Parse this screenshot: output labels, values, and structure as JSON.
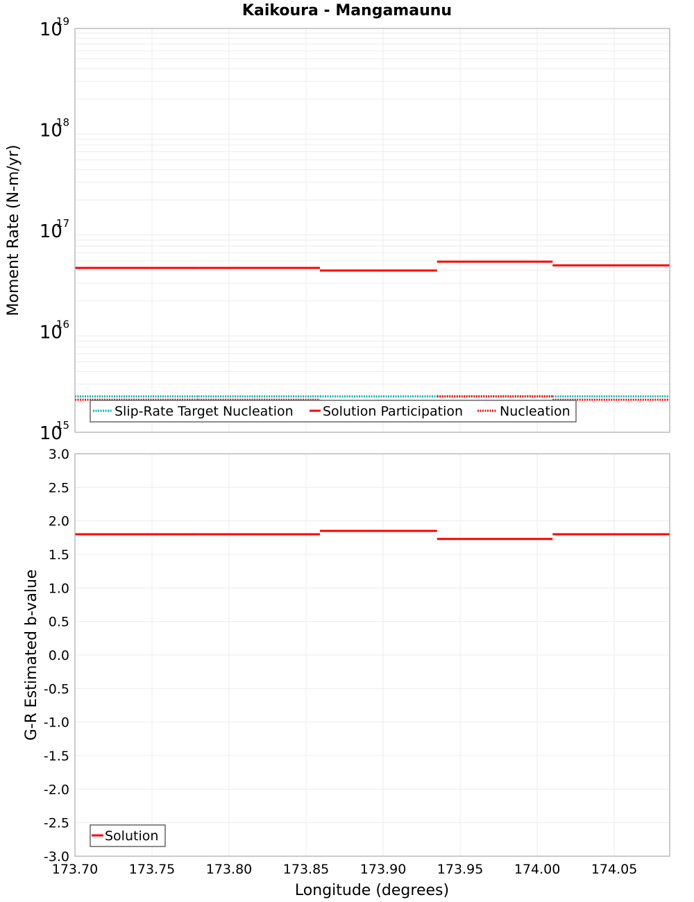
{
  "chart_data": [
    {
      "type": "line",
      "title": "Kaikoura - Mangamaunu",
      "ylabel": "Moment Rate (N-m/yr)",
      "xlabel": "",
      "yscale": "log",
      "ylim": [
        1000000000000000.0,
        1e+19
      ],
      "xlim": [
        173.7,
        174.086
      ],
      "y_ticks": [
        {
          "base": "10",
          "exp": "19",
          "value": 1e+19
        },
        {
          "base": "10",
          "exp": "18",
          "value": 1e+18
        },
        {
          "base": "10",
          "exp": "17",
          "value": 1e+17
        },
        {
          "base": "10",
          "exp": "16",
          "value": 1e+16
        },
        {
          "base": "10",
          "exp": "15",
          "value": 1000000000000000.0
        }
      ],
      "grid": true,
      "legend_position": "bottom-left inside",
      "legend": [
        "Slip-Rate Target Nucleation",
        "Solution Participation",
        "Nucleation"
      ],
      "x_bins": [
        173.7,
        173.78,
        173.859,
        173.935,
        174.01,
        174.086
      ],
      "series": [
        {
          "name": "Slip-Rate Target Nucleation",
          "style": "dotted",
          "color": "#00b4b4",
          "values": [
            2270000000000000.0,
            2270000000000000.0,
            2270000000000000.0,
            2270000000000000.0,
            2270000000000000.0
          ]
        },
        {
          "name": "Solution Participation",
          "style": "solid",
          "color": "#ff0000",
          "values": [
            4.25e+16,
            4.25e+16,
            4e+16,
            4.9e+16,
            4.5e+16
          ]
        },
        {
          "name": "Nucleation",
          "style": "dotted",
          "color": "#ff0000",
          "values": [
            2100000000000000.0,
            2100000000000000.0,
            2000000000000000.0,
            2270000000000000.0,
            2100000000000000.0
          ]
        }
      ]
    },
    {
      "type": "line",
      "title": "",
      "ylabel": "G-R Estimated b-value",
      "xlabel": "Longitude (degrees)",
      "ylim": [
        -3.0,
        3.0
      ],
      "xlim": [
        173.7,
        174.086
      ],
      "y_ticks": [
        "3.0",
        "2.5",
        "2.0",
        "1.5",
        "1.0",
        "0.5",
        "0.0",
        "-0.5",
        "-1.0",
        "-1.5",
        "-2.0",
        "-2.5",
        "-3.0"
      ],
      "x_ticks": [
        "173.70",
        "173.75",
        "173.80",
        "173.85",
        "173.90",
        "173.95",
        "174.00",
        "174.05"
      ],
      "grid": true,
      "legend_position": "bottom-left inside",
      "legend": [
        "Solution"
      ],
      "x_bins": [
        173.7,
        173.78,
        173.859,
        173.935,
        174.01,
        174.086
      ],
      "series": [
        {
          "name": "Solution",
          "style": "solid",
          "color": "#ff0000",
          "values": [
            1.8,
            1.8,
            1.85,
            1.73,
            1.8
          ]
        }
      ]
    }
  ]
}
